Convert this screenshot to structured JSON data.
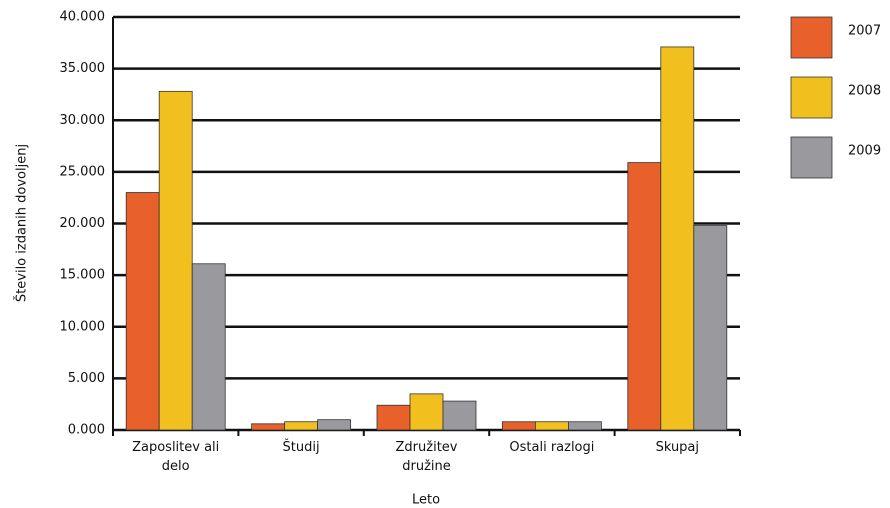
{
  "chart_data": {
    "type": "bar",
    "y_label": "Število izdanih dovoljenj",
    "x_label": "Leto",
    "categories": [
      "Zaposlitev ali delo",
      "Študij",
      "Združitev družine",
      "Ostali razlogi",
      "Skupaj"
    ],
    "series": [
      {
        "name": "2007",
        "color": "#e8602a",
        "values": [
          23000,
          600,
          2400,
          800,
          25900
        ]
      },
      {
        "name": "2008",
        "color": "#f2c01e",
        "values": [
          32800,
          800,
          3500,
          800,
          37100
        ]
      },
      {
        "name": "2009",
        "color": "#9a9a9e",
        "values": [
          16100,
          1000,
          2800,
          800,
          19800
        ]
      }
    ],
    "ylim": [
      0,
      40000
    ],
    "yticks": [
      {
        "value": 0,
        "label": "0.000"
      },
      {
        "value": 5000,
        "label": "5.000"
      },
      {
        "value": 10000,
        "label": "10.000"
      },
      {
        "value": 15000,
        "label": "15.000"
      },
      {
        "value": 20000,
        "label": "20.000"
      },
      {
        "value": 25000,
        "label": "25.000"
      },
      {
        "value": 30000,
        "label": "30.000"
      },
      {
        "value": 35000,
        "label": "35.000"
      },
      {
        "value": 40000,
        "label": "40.000"
      }
    ],
    "grid": true
  }
}
